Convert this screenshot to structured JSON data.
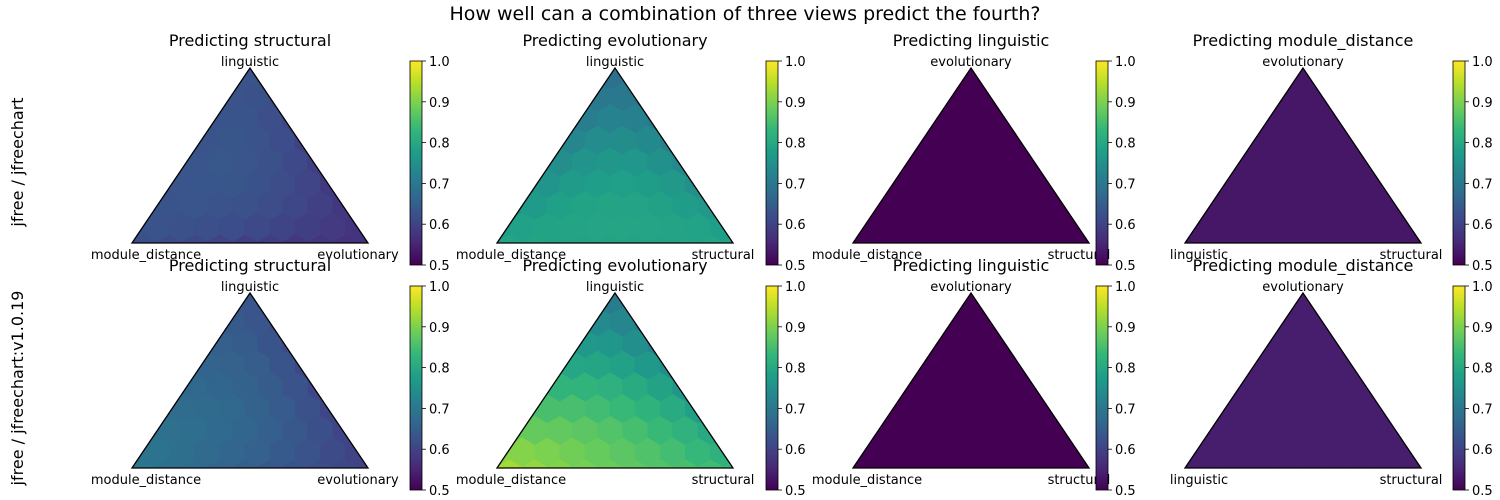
{
  "figure": {
    "suptitle": "How well can a combination of three views predict the fourth?",
    "row_labels": [
      "jfree / jfreechart",
      "jfree / jfreechart:v1.0.19"
    ]
  },
  "colormap": {
    "name": "viridis",
    "stops": [
      "#440154",
      "#482878",
      "#3e4989",
      "#31688e",
      "#26828e",
      "#1f9e89",
      "#35b779",
      "#6ece58",
      "#b5de2b",
      "#fde725"
    ]
  },
  "colorbar": {
    "range": [
      0.5,
      1.0
    ],
    "ticks": [
      "0.5",
      "0.6",
      "0.7",
      "0.8",
      "0.9",
      "1.0"
    ]
  },
  "chart_data": [
    {
      "type": "heatmap",
      "chart_type": "ternary-hexbin",
      "row": "jfree / jfreechart",
      "title": "Predicting structural",
      "corners": {
        "top": "linguistic",
        "left": "module_distance",
        "right": "evolutionary"
      },
      "value_range": [
        0.5,
        1.0
      ],
      "values": {
        "top": 0.63,
        "left": 0.63,
        "right": 0.57,
        "center": 0.63
      },
      "notes": "mostly ~0.62-0.65; lower along right edge (~0.57); bottom edge row ~0.52"
    },
    {
      "type": "heatmap",
      "chart_type": "ternary-hexbin",
      "row": "jfree / jfreechart",
      "title": "Predicting evolutionary",
      "corners": {
        "top": "linguistic",
        "left": "module_distance",
        "right": "structural"
      },
      "value_range": [
        0.5,
        1.0
      ],
      "values": {
        "top": 0.68,
        "left": 0.79,
        "right": 0.79,
        "center": 0.78
      },
      "notes": "mostly ~0.78-0.80; teal (~0.70) near top and right edge"
    },
    {
      "type": "heatmap",
      "chart_type": "ternary-hexbin",
      "row": "jfree / jfreechart",
      "title": "Predicting linguistic",
      "corners": {
        "top": "evolutionary",
        "left": "module_distance",
        "right": "structural"
      },
      "value_range": [
        0.5,
        1.0
      ],
      "values": {
        "top": 0.5,
        "left": 0.5,
        "right": 0.5,
        "center": 0.5
      },
      "notes": "uniform ~0.50"
    },
    {
      "type": "heatmap",
      "chart_type": "ternary-hexbin",
      "row": "jfree / jfreechart",
      "title": "Predicting module_distance",
      "corners": {
        "top": "evolutionary",
        "left": "linguistic",
        "right": "structural"
      },
      "value_range": [
        0.5,
        1.0
      ],
      "values": {
        "top": 0.53,
        "left": 0.53,
        "right": 0.53,
        "center": 0.53
      },
      "notes": "uniform ~0.53; right edge cells slightly darker (~0.51)"
    },
    {
      "type": "heatmap",
      "chart_type": "ternary-hexbin",
      "row": "jfree / jfreechart:v1.0.19",
      "title": "Predicting structural",
      "corners": {
        "top": "linguistic",
        "left": "module_distance",
        "right": "evolutionary"
      },
      "value_range": [
        0.5,
        1.0
      ],
      "values": {
        "top": 0.63,
        "left": 0.7,
        "right": 0.6,
        "center": 0.66
      },
      "notes": "~0.63 near top rising to ~0.70 near bottom-left; dark cell (~0.52) at right corner"
    },
    {
      "type": "heatmap",
      "chart_type": "ternary-hexbin",
      "row": "jfree / jfreechart:v1.0.19",
      "title": "Predicting evolutionary",
      "corners": {
        "top": "linguistic",
        "left": "module_distance",
        "right": "structural"
      },
      "value_range": [
        0.5,
        1.0
      ],
      "values": {
        "top": 0.7,
        "left": 0.93,
        "right": 0.83,
        "center": 0.84
      },
      "notes": "~0.70 near top, ~0.93 along bottom edge (yellow-green)"
    },
    {
      "type": "heatmap",
      "chart_type": "ternary-hexbin",
      "row": "jfree / jfreechart:v1.0.19",
      "title": "Predicting linguistic",
      "corners": {
        "top": "evolutionary",
        "left": "module_distance",
        "right": "structural"
      },
      "value_range": [
        0.5,
        1.0
      ],
      "values": {
        "top": 0.5,
        "left": 0.5,
        "right": 0.5,
        "center": 0.5
      },
      "notes": "uniform ~0.50"
    },
    {
      "type": "heatmap",
      "chart_type": "ternary-hexbin",
      "row": "jfree / jfreechart:v1.0.19",
      "title": "Predicting module_distance",
      "corners": {
        "top": "evolutionary",
        "left": "linguistic",
        "right": "structural"
      },
      "value_range": [
        0.5,
        1.0
      ],
      "values": {
        "top": 0.54,
        "left": 0.54,
        "right": 0.54,
        "center": 0.54
      },
      "notes": "uniform ~0.54; right edge cells slightly darker (~0.52)"
    }
  ]
}
